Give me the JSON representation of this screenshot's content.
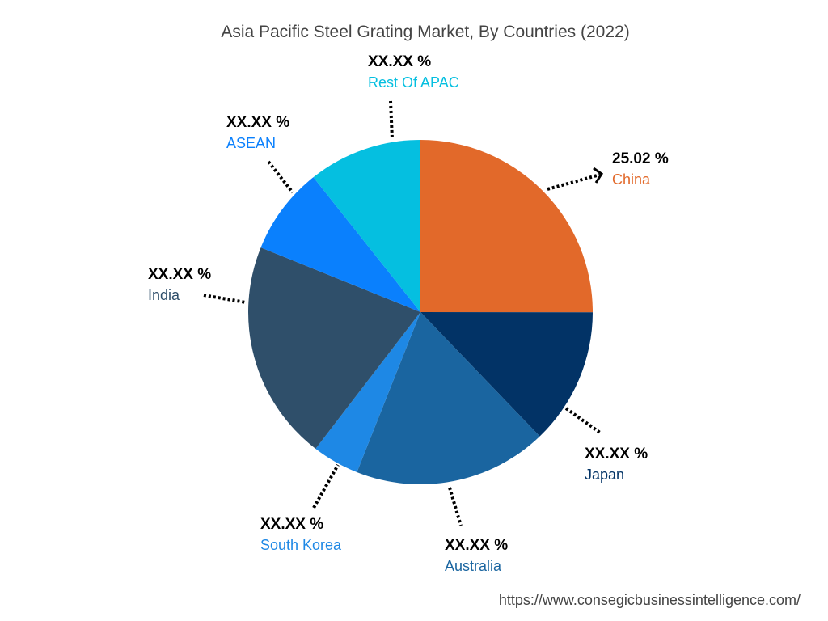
{
  "chart_data": {
    "type": "pie",
    "title": "Asia Pacific Steel Grating Market, By Countries (2022)",
    "categories": [
      "China",
      "Japan",
      "Australia",
      "South Korea",
      "India",
      "ASEAN",
      "Rest Of APAC"
    ],
    "values": [
      25.02,
      12.8,
      18.2,
      4.4,
      20.7,
      8.2,
      10.68
    ],
    "value_labels": [
      "25.02 %",
      "XX.XX %",
      "XX.XX %",
      "XX.XX %",
      "XX.XX %",
      "XX.XX %",
      "XX.XX %"
    ],
    "colors": [
      "#e2692a",
      "#023366",
      "#1a65a0",
      "#1e88e5",
      "#2f4f6a",
      "#0a80fd",
      "#05bfe0"
    ],
    "source": "https://www.consegicbusinessintelligence.com/"
  }
}
